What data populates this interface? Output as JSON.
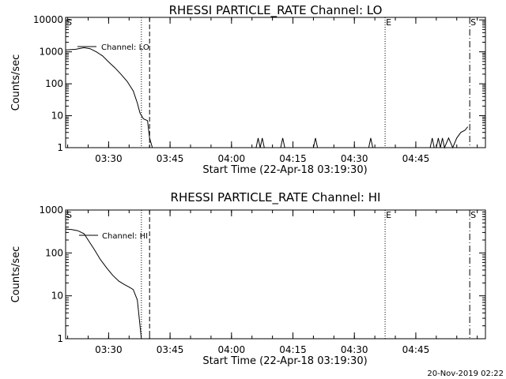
{
  "footer_timestamp": "20-Nov-2019 02:22",
  "chart_data": [
    {
      "type": "line",
      "title": "RHESSI PARTICLE_RATE Channel: LO",
      "xlabel": "Start Time (22-Apr-18 03:19:30)",
      "ylabel": "Counts/sec",
      "yscale": "log",
      "ylim": [
        1,
        12000
      ],
      "xlim": [
        "03:19:30",
        "05:02:00"
      ],
      "y_ticks": [
        {
          "value": 1,
          "label": "1"
        },
        {
          "value": 10,
          "label": "10"
        },
        {
          "value": 100,
          "label": "100"
        },
        {
          "value": 1000,
          "label": "1000"
        },
        {
          "value": 10000,
          "label": "10000"
        }
      ],
      "x_ticks": [
        "03:30",
        "03:45",
        "04:00",
        "04:15",
        "04:30",
        "04:45"
      ],
      "series": [
        {
          "name": "Channel: LO",
          "x": [
            "03:19:30",
            "03:22:00",
            "03:24:00",
            "03:25:30",
            "03:27:00",
            "03:28:30",
            "03:30:00",
            "03:31:30",
            "03:33:00",
            "03:34:30",
            "03:36:00",
            "03:37:00",
            "03:37:40",
            "03:38:30",
            "03:39:30",
            "03:40:00",
            "03:40:40",
            "04:06:00",
            "04:06:30",
            "04:07:00",
            "04:07:30",
            "04:08:00",
            "04:12:00",
            "04:12:30",
            "04:13:00",
            "04:20:00",
            "04:20:30",
            "04:21:00",
            "04:33:30",
            "04:34:00",
            "04:34:30",
            "04:48:30",
            "04:49:00",
            "04:49:30",
            "04:50:00",
            "04:50:30",
            "04:51:00",
            "04:51:30",
            "04:52:00",
            "04:53:00",
            "04:54:00",
            "04:55:00",
            "04:56:00",
            "04:57:00",
            "04:57:40"
          ],
          "y": [
            1150,
            1200,
            1350,
            1250,
            1000,
            750,
            480,
            320,
            200,
            120,
            60,
            25,
            12,
            8,
            7,
            2,
            1,
            1,
            2,
            1,
            2,
            1,
            1,
            2,
            1,
            1,
            2,
            1,
            1,
            2,
            1,
            1,
            2,
            1,
            1,
            2,
            1,
            2,
            1,
            2,
            1,
            2,
            3,
            3.5,
            4.5
          ]
        }
      ],
      "annotations": [
        {
          "label": "S",
          "time": "03:19:30",
          "style": "solid"
        },
        {
          "label": "E",
          "time": "04:37:30",
          "style": "dotted"
        },
        {
          "label": "S",
          "time": "04:58:10",
          "style": "dash-dot"
        }
      ],
      "vertical_lines": [
        {
          "time": "03:38:00",
          "style": "dotted"
        },
        {
          "time": "03:40:00",
          "style": "dashed"
        }
      ]
    },
    {
      "type": "line",
      "title": "RHESSI PARTICLE_RATE Channel: HI",
      "xlabel": "Start Time (22-Apr-18 03:19:30)",
      "ylabel": "Counts/sec",
      "yscale": "log",
      "ylim": [
        1,
        1000
      ],
      "xlim": [
        "03:19:30",
        "05:02:00"
      ],
      "y_ticks": [
        {
          "value": 1,
          "label": "1"
        },
        {
          "value": 10,
          "label": "10"
        },
        {
          "value": 100,
          "label": "100"
        },
        {
          "value": 1000,
          "label": "1000"
        }
      ],
      "x_ticks": [
        "03:30",
        "03:45",
        "04:00",
        "04:15",
        "04:30",
        "04:45"
      ],
      "series": [
        {
          "name": "Channel: HI",
          "x": [
            "03:19:30",
            "03:21:00",
            "03:22:30",
            "03:24:00",
            "03:25:00",
            "03:26:30",
            "03:28:00",
            "03:29:30",
            "03:31:00",
            "03:32:30",
            "03:34:00",
            "03:35:00",
            "03:36:00",
            "03:37:00",
            "03:37:40",
            "03:38:00"
          ],
          "y": [
            360,
            350,
            330,
            280,
            200,
            120,
            70,
            45,
            30,
            22,
            18,
            16,
            14,
            8,
            2,
            1
          ]
        }
      ],
      "annotations": [
        {
          "label": "S",
          "time": "03:19:30",
          "style": "solid"
        },
        {
          "label": "E",
          "time": "04:37:30",
          "style": "dotted"
        },
        {
          "label": "S",
          "time": "04:58:10",
          "style": "dash-dot"
        }
      ],
      "vertical_lines": [
        {
          "time": "03:38:00",
          "style": "dotted"
        },
        {
          "time": "03:40:00",
          "style": "dashed"
        }
      ]
    }
  ]
}
